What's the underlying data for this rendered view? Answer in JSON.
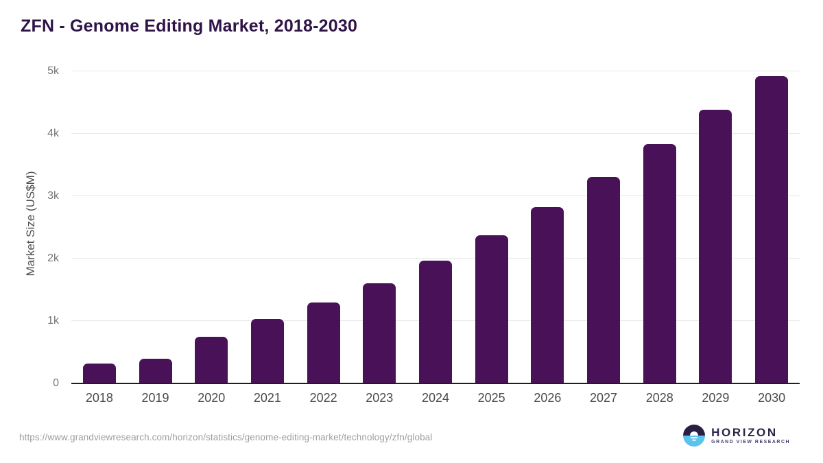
{
  "header": {
    "title": "ZFN - Genome Editing Market, 2018-2030"
  },
  "chart_data": {
    "type": "bar",
    "title": "ZFN - Genome Editing Market, 2018-2030",
    "categories": [
      "2018",
      "2019",
      "2020",
      "2021",
      "2022",
      "2023",
      "2024",
      "2025",
      "2026",
      "2027",
      "2028",
      "2029",
      "2030"
    ],
    "values": [
      320,
      400,
      750,
      1030,
      1300,
      1610,
      1970,
      2370,
      2820,
      3310,
      3840,
      4390,
      4920
    ],
    "xlabel": "",
    "ylabel": "Market Size (US$M)",
    "ylim": [
      0,
      5000
    ],
    "ytick_labels": [
      "0",
      "1k",
      "2k",
      "3k",
      "4k",
      "5k"
    ],
    "ytick_values": [
      0,
      1000,
      2000,
      3000,
      4000,
      5000
    ],
    "grid": "horizontal-only",
    "legend": "none",
    "bar_color": "#491157"
  },
  "footer": {
    "source_url": "https://www.grandviewresearch.com/horizon/statistics/genome-editing-market/technology/zfn/global",
    "logo": {
      "name": "HORIZON",
      "subtitle": "GRAND VIEW RESEARCH",
      "mark_top_color": "#2a1e43",
      "mark_bottom_color": "#5cc3ee"
    }
  },
  "colors": {
    "background": "#ffffff",
    "title_text": "#2f1347",
    "bar": "#491157",
    "gridline": "#e7e7e7",
    "axis_line": "#1f1f1f",
    "tick_text": "#757575",
    "axis_label_text": "#4a4a4a",
    "url_text": "#9e9e9e"
  }
}
